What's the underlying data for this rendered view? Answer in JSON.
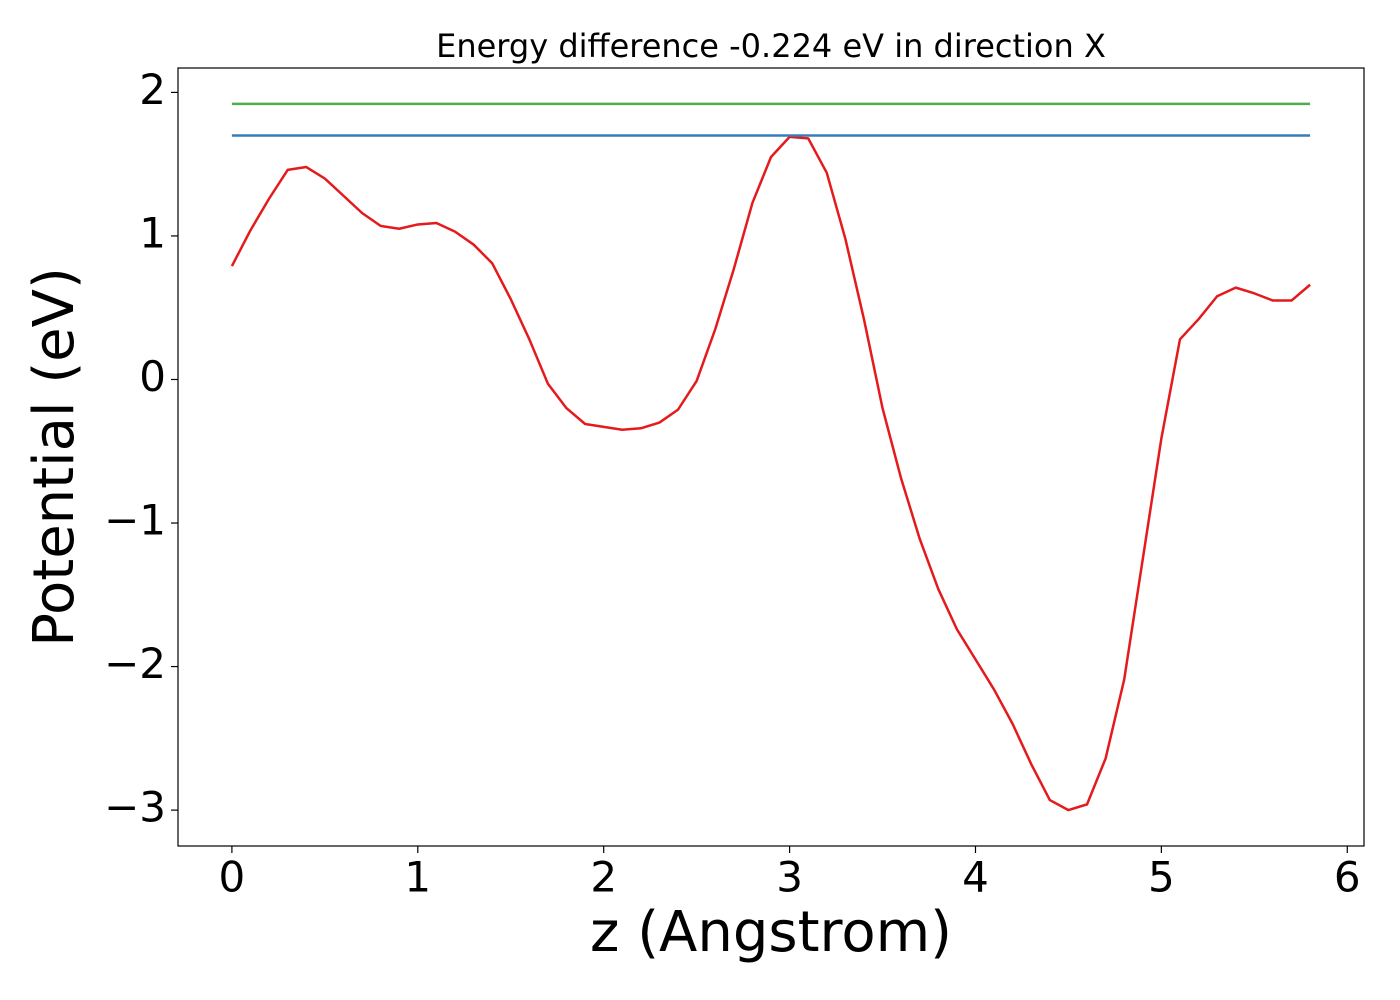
{
  "chart_data": {
    "type": "line",
    "title": "Energy difference -0.224 eV in direction X",
    "x_label": "z (Angstrom)",
    "y_label": "Potential (eV)",
    "xlim": [
      -0.29,
      6.09
    ],
    "ylim": [
      -3.25,
      2.17
    ],
    "xticks": [
      0,
      1,
      2,
      3,
      4,
      5,
      6
    ],
    "yticks": [
      {
        "value": -3,
        "label": "−3"
      },
      {
        "value": -2,
        "label": "−2"
      },
      {
        "value": -1,
        "label": "−1"
      },
      0,
      1,
      2
    ],
    "series": [
      {
        "color": "#e41a1c",
        "x": [
          0,
          0.1,
          0.2,
          0.3,
          0.4,
          0.5,
          0.6,
          0.7,
          0.8,
          0.9,
          1.0,
          1.1,
          1.2,
          1.3,
          1.4,
          1.5,
          1.6,
          1.7,
          1.8,
          1.9,
          2.0,
          2.1,
          2.2,
          2.3,
          2.4,
          2.5,
          2.6,
          2.7,
          2.8,
          2.9,
          3.0,
          3.1,
          3.2,
          3.3,
          3.4,
          3.5,
          3.6,
          3.7,
          3.8,
          3.9,
          4.0,
          4.1,
          4.2,
          4.3,
          4.4,
          4.5,
          4.6,
          4.7,
          4.8,
          4.9,
          5.0,
          5.1,
          5.2,
          5.3,
          5.4,
          5.5,
          5.6,
          5.7,
          5.8
        ],
        "values": [
          0.79,
          1.04,
          1.26,
          1.46,
          1.48,
          1.4,
          1.28,
          1.16,
          1.07,
          1.05,
          1.08,
          1.09,
          1.03,
          0.94,
          0.81,
          0.56,
          0.28,
          -0.03,
          -0.2,
          -0.31,
          -0.33,
          -0.35,
          -0.34,
          -0.3,
          -0.21,
          -0.01,
          0.35,
          0.77,
          1.23,
          1.55,
          1.69,
          1.68,
          1.44,
          0.98,
          0.42,
          -0.2,
          -0.69,
          -1.11,
          -1.46,
          -1.74,
          -1.95,
          -2.16,
          -2.4,
          -2.68,
          -2.93,
          -3.0,
          -2.96,
          -2.64,
          -2.09,
          -1.25,
          -0.41,
          0.28,
          0.42,
          0.58,
          0.64,
          0.6,
          0.55,
          0.55,
          0.66
        ]
      },
      {
        "color": "#4daf4a",
        "x": [
          0,
          5.8
        ],
        "values": [
          1.92,
          1.92
        ]
      },
      {
        "color": "#377eb8",
        "x": [
          0,
          5.8
        ],
        "values": [
          1.7,
          1.7
        ]
      }
    ]
  }
}
